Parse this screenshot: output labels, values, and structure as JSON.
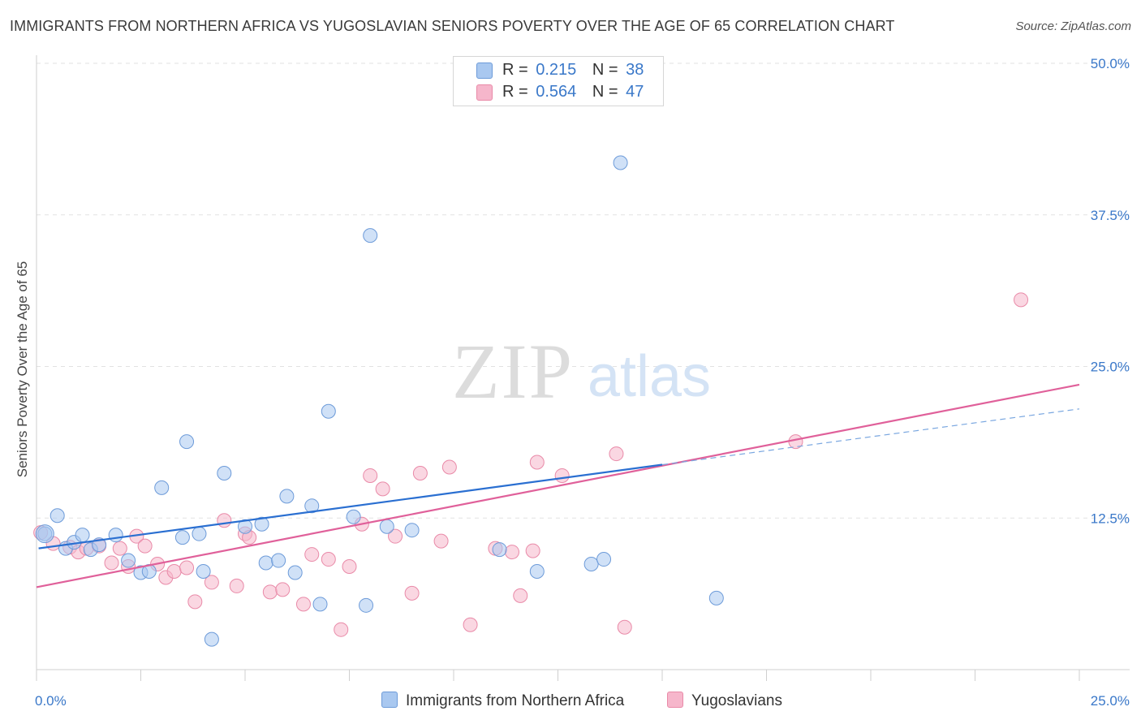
{
  "title": "IMMIGRANTS FROM NORTHERN AFRICA VS YUGOSLAVIAN SENIORS POVERTY OVER THE AGE OF 65 CORRELATION CHART",
  "source": "Source: ZipAtlas.com",
  "watermark": {
    "zip": "ZIP",
    "atlas": "atlas"
  },
  "legend": {
    "rows": [
      {
        "r_label": "R =",
        "r_value": "0.215",
        "n_label": "N =",
        "n_value": "38",
        "color": "#a9c8f0"
      },
      {
        "r_label": "R =",
        "r_value": "0.564",
        "n_label": "N =",
        "n_value": "47",
        "color": "#f6b6cb"
      }
    ]
  },
  "bottom_legend": {
    "series1": "Immigrants from Northern Africa",
    "series2": "Yugoslavians"
  },
  "chart_data": {
    "type": "scatter",
    "title": "IMMIGRANTS FROM NORTHERN AFRICA VS YUGOSLAVIAN SENIORS POVERTY OVER THE AGE OF 65 CORRELATION CHART",
    "xlabel": "",
    "ylabel": "Seniors Poverty Over the Age of 65",
    "xlim": [
      0,
      25
    ],
    "ylim": [
      0,
      50
    ],
    "x_tick_labels": [
      {
        "value": 0,
        "label": "0.0%"
      },
      {
        "value": 25,
        "label": "25.0%"
      }
    ],
    "y_tick_labels": [
      {
        "value": 12.5,
        "label": "12.5%"
      },
      {
        "value": 25,
        "label": "25.0%"
      },
      {
        "value": 37.5,
        "label": "37.5%"
      },
      {
        "value": 50,
        "label": "50.0%"
      }
    ],
    "grid": true,
    "legend_position": "top-center",
    "series": [
      {
        "name": "Immigrants from Northern Africa",
        "color": "#a9c8f0",
        "stroke": "#6d9bd9",
        "trend_color": "#2a6fd1",
        "trend": {
          "x0": 0.05,
          "y0": 10.0,
          "x1": 15.0,
          "y1": 16.9,
          "dash_x1": 25.0,
          "dash_y1": 21.5
        },
        "points": [
          [
            0.2,
            11.2
          ],
          [
            0.5,
            12.7
          ],
          [
            0.7,
            10.0
          ],
          [
            0.9,
            10.5
          ],
          [
            1.1,
            11.1
          ],
          [
            1.3,
            9.9
          ],
          [
            1.5,
            10.3
          ],
          [
            1.9,
            11.1
          ],
          [
            2.2,
            9.0
          ],
          [
            2.5,
            8.0
          ],
          [
            2.7,
            8.1
          ],
          [
            3.0,
            15.0
          ],
          [
            3.5,
            10.9
          ],
          [
            3.6,
            18.8
          ],
          [
            3.9,
            11.2
          ],
          [
            4.0,
            8.1
          ],
          [
            4.2,
            2.5
          ],
          [
            4.5,
            16.2
          ],
          [
            5.0,
            11.8
          ],
          [
            5.4,
            12.0
          ],
          [
            5.5,
            8.8
          ],
          [
            5.8,
            9.0
          ],
          [
            6.0,
            14.3
          ],
          [
            6.2,
            8.0
          ],
          [
            6.6,
            13.5
          ],
          [
            6.8,
            5.4
          ],
          [
            7.0,
            21.3
          ],
          [
            7.6,
            12.6
          ],
          [
            7.9,
            5.3
          ],
          [
            8.0,
            35.8
          ],
          [
            8.4,
            11.8
          ],
          [
            9.0,
            11.5
          ],
          [
            11.1,
            9.9
          ],
          [
            12.0,
            8.1
          ],
          [
            13.3,
            8.7
          ],
          [
            13.6,
            9.1
          ],
          [
            14.0,
            41.8
          ],
          [
            16.3,
            5.9
          ]
        ]
      },
      {
        "name": "Yugoslavians",
        "color": "#f6b6cb",
        "stroke": "#e98aa8",
        "trend_color": "#e0609a",
        "trend": {
          "x0": 0.0,
          "y0": 6.8,
          "x1": 25.0,
          "y1": 23.5
        },
        "points": [
          [
            0.1,
            11.3
          ],
          [
            0.4,
            10.4
          ],
          [
            0.8,
            10.1
          ],
          [
            1.0,
            9.7
          ],
          [
            1.2,
            10.0
          ],
          [
            1.5,
            10.2
          ],
          [
            1.8,
            8.8
          ],
          [
            2.0,
            10.0
          ],
          [
            2.2,
            8.5
          ],
          [
            2.4,
            11.0
          ],
          [
            2.6,
            10.2
          ],
          [
            2.9,
            8.7
          ],
          [
            3.1,
            7.6
          ],
          [
            3.3,
            8.1
          ],
          [
            3.6,
            8.4
          ],
          [
            3.8,
            5.6
          ],
          [
            4.2,
            7.2
          ],
          [
            4.5,
            12.3
          ],
          [
            4.8,
            6.9
          ],
          [
            5.0,
            11.2
          ],
          [
            5.1,
            10.9
          ],
          [
            5.6,
            6.4
          ],
          [
            5.9,
            6.6
          ],
          [
            6.4,
            5.4
          ],
          [
            6.6,
            9.5
          ],
          [
            7.0,
            9.1
          ],
          [
            7.3,
            3.3
          ],
          [
            7.5,
            8.5
          ],
          [
            7.8,
            12.0
          ],
          [
            8.0,
            16.0
          ],
          [
            8.3,
            14.9
          ],
          [
            8.6,
            11.0
          ],
          [
            9.0,
            6.3
          ],
          [
            9.2,
            16.2
          ],
          [
            9.7,
            10.6
          ],
          [
            9.9,
            16.7
          ],
          [
            10.4,
            3.7
          ],
          [
            11.0,
            10.0
          ],
          [
            11.4,
            9.7
          ],
          [
            11.6,
            6.1
          ],
          [
            11.9,
            9.8
          ],
          [
            12.0,
            17.1
          ],
          [
            12.6,
            16.0
          ],
          [
            13.9,
            17.8
          ],
          [
            14.1,
            3.5
          ],
          [
            18.2,
            18.8
          ],
          [
            23.6,
            30.5
          ]
        ]
      }
    ]
  }
}
